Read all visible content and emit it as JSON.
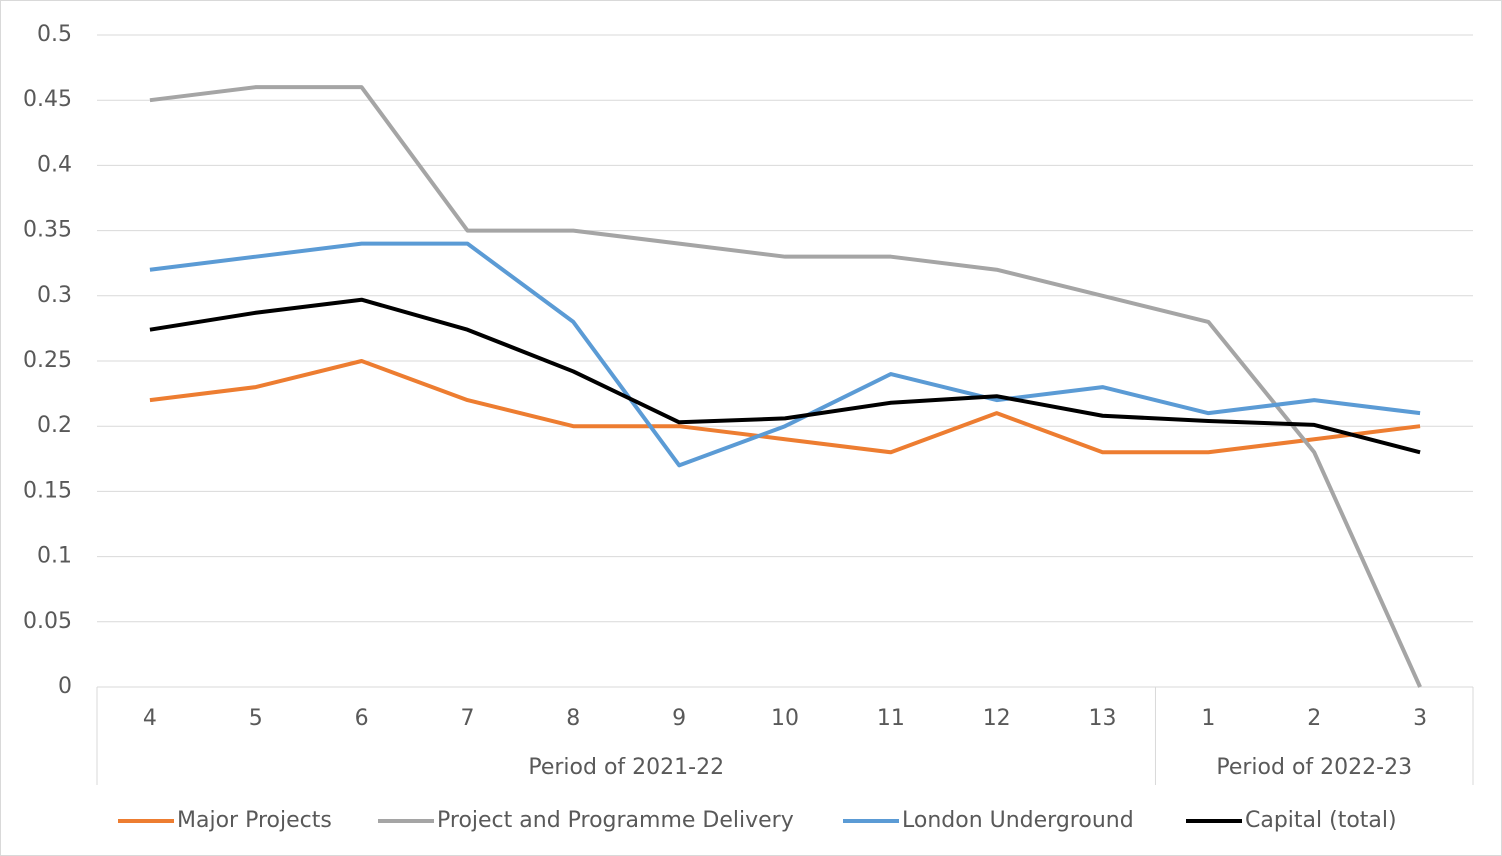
{
  "chart_data": {
    "type": "line",
    "groups": [
      {
        "label": "Period of 2021-22",
        "categories": [
          "4",
          "5",
          "6",
          "7",
          "8",
          "9",
          "10",
          "11",
          "12",
          "13"
        ]
      },
      {
        "label": "Period of 2022-23",
        "categories": [
          "1",
          "2",
          "3"
        ]
      }
    ],
    "ylim": [
      0,
      0.5
    ],
    "yticks": [
      0,
      0.05,
      0.1,
      0.15,
      0.2,
      0.25,
      0.3,
      0.35,
      0.4,
      0.45,
      0.5
    ],
    "grid": true,
    "legend": "bottom",
    "series": [
      {
        "name": "Major Projects",
        "color": "#ed7d31",
        "values": [
          0.22,
          0.23,
          0.25,
          0.22,
          0.2,
          0.2,
          0.19,
          0.18,
          0.21,
          0.18,
          0.18,
          0.19,
          0.2
        ]
      },
      {
        "name": "Project and Programme Delivery",
        "color": "#a5a5a5",
        "values": [
          0.45,
          0.46,
          0.46,
          0.35,
          0.35,
          0.34,
          0.33,
          0.33,
          0.32,
          0.3,
          0.28,
          0.18,
          0
        ]
      },
      {
        "name": "London Underground",
        "color": "#5b9bd5",
        "values": [
          0.32,
          0.33,
          0.34,
          0.34,
          0.28,
          0.17,
          0.2,
          0.24,
          0.22,
          0.23,
          0.21,
          0.22,
          0.21
        ]
      },
      {
        "name": "Capital (total)",
        "color": "#000000",
        "values": [
          0.274,
          0.287,
          0.297,
          0.274,
          0.242,
          0.203,
          0.206,
          0.218,
          0.223,
          0.208,
          0.204,
          0.201,
          0.18
        ]
      }
    ]
  }
}
